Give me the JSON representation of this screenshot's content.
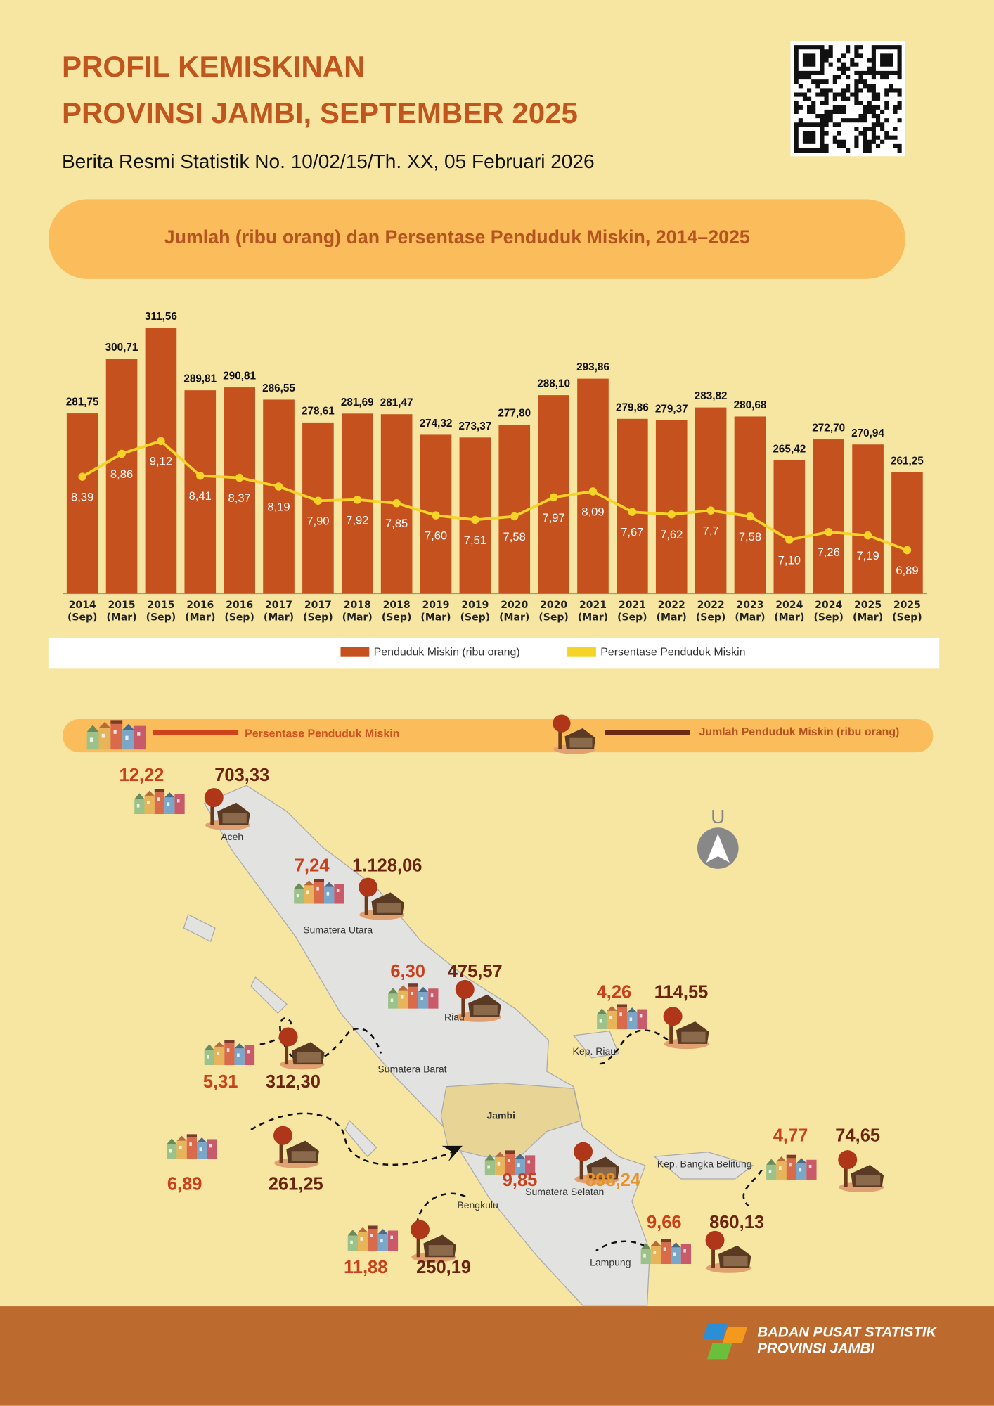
{
  "header": {
    "title_line1": "PROFIL KEMISKINAN",
    "title_line2": "PROVINSI JAMBI, SEPTEMBER 2025",
    "subtitle": "Berita Resmi Statistik No. 10/02/15/Th. XX, 05 Februari 2026"
  },
  "chart_data": {
    "type": "bar",
    "title": "Jumlah (ribu orang) dan Persentase Penduduk Miskin, 2014–2025",
    "categories": [
      "2014 (Sep)",
      "2015 (Mar)",
      "2015 (Sep)",
      "2016 (Mar)",
      "2016 (Sep)",
      "2017 (Mar)",
      "2017 (Sep)",
      "2018 (Mar)",
      "2018 (Sep)",
      "2019 (Mar)",
      "2019 (Sep)",
      "2020 (Mar)",
      "2020 (Sep)",
      "2021 (Mar)",
      "2021 (Sep)",
      "2022 (Mar)",
      "2022 (Sep)",
      "2023 (Mar)",
      "2024 (Mar)",
      "2024 (Sep)",
      "2025 (Mar)",
      "2025 (Sep)"
    ],
    "series": [
      {
        "name": "Penduduk Miskin (ribu orang)",
        "type": "bar",
        "color": "#c5511f",
        "values": [
          281.75,
          300.71,
          311.56,
          289.81,
          290.81,
          286.55,
          278.61,
          281.69,
          281.47,
          274.32,
          273.37,
          277.8,
          288.1,
          293.86,
          279.86,
          279.37,
          283.82,
          280.68,
          265.42,
          272.7,
          270.94,
          261.25
        ],
        "value_labels": [
          "281,75",
          "300,71",
          "311,56",
          "289,81",
          "290,81",
          "286,55",
          "278,61",
          "281,69",
          "281,47",
          "274,32",
          "273,37",
          "277,80",
          "288,10",
          "293,86",
          "279,86",
          "279,37",
          "283,82",
          "280,68",
          "265,42",
          "272,70",
          "270,94",
          "261,25"
        ]
      },
      {
        "name": "Persentase Penduduk Miskin",
        "type": "line",
        "axis": "y2",
        "color": "#f5d327",
        "values": [
          8.39,
          8.86,
          9.12,
          8.41,
          8.37,
          8.19,
          7.9,
          7.92,
          7.85,
          7.6,
          7.51,
          7.58,
          7.97,
          8.09,
          7.67,
          7.62,
          7.7,
          7.58,
          7.1,
          7.26,
          7.19,
          6.89
        ],
        "value_labels": [
          "8,39",
          "8,86",
          "9,12",
          "8,41",
          "8,37",
          "8,19",
          "7,90",
          "7,92",
          "7,85",
          "7,60",
          "7,51",
          "7,58",
          "7,97",
          "8,09",
          "7,67",
          "7,62",
          "7,7",
          "7,58",
          "7,10",
          "7,26",
          "7,19",
          "6,89"
        ]
      }
    ],
    "ylim": [
      219,
      312
    ],
    "y2lim": [
      6,
      11.46
    ]
  },
  "map": {
    "legend": {
      "percent": "Persentase Penduduk Miskin",
      "count": "Jumlah Penduduk Miskin (ribu orang)"
    },
    "north_label": "U",
    "provinces": [
      {
        "name": "Aceh",
        "percent": "12,22",
        "count": "703,33"
      },
      {
        "name": "Sumatera Utara",
        "percent": "7,24",
        "count": "1.128,06"
      },
      {
        "name": "Riau",
        "percent": "6,30",
        "count": "475,57"
      },
      {
        "name": "Kep. Riau",
        "percent": "4,26",
        "count": "114,55"
      },
      {
        "name": "Sumatera Barat",
        "percent": "5,31",
        "count": "312,30"
      },
      {
        "name": "Jambi",
        "percent": "6,89",
        "count": "261,25"
      },
      {
        "name": "Sumatera Selatan",
        "percent": "9,85",
        "count": "898,24"
      },
      {
        "name": "Bengkulu",
        "percent": "11,88",
        "count": "250,19"
      },
      {
        "name": "Kep. Bangka Belitung",
        "percent": "4,77",
        "count": "74,65"
      },
      {
        "name": "Lampung",
        "percent": "9,66",
        "count": "860,13"
      }
    ]
  },
  "footer": {
    "line1": "BADAN PUSAT STATISTIK",
    "line2": "PROVINSI JAMBI"
  }
}
